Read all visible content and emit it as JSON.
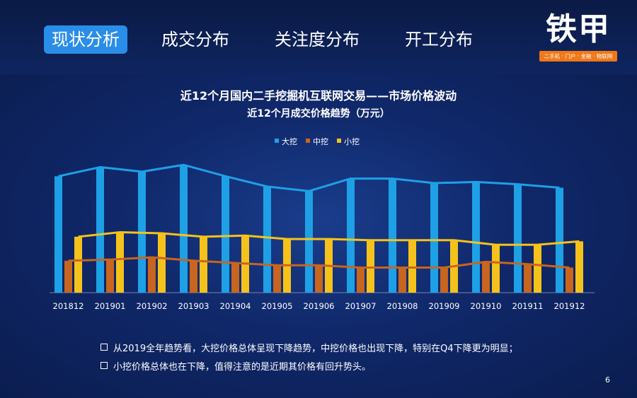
{
  "nav": {
    "tabs": [
      {
        "label": "现状分析",
        "active": true
      },
      {
        "label": "成交分布",
        "active": false
      },
      {
        "label": "关注度分布",
        "active": false
      },
      {
        "label": "开工分布",
        "active": false
      }
    ]
  },
  "logo": {
    "main": "铁甲",
    "sub": "二手机 · 门户 · 金融 · 物联网"
  },
  "colors": {
    "background": "#0d2258",
    "active_tab": "#2a8ee8",
    "large": "#1ea0e6",
    "medium": "#c8651e",
    "small": "#f5c21b",
    "logo_sub": "#f07818"
  },
  "chart_data": {
    "type": "bar",
    "title": "近12个月国内二手挖掘机互联网交易——市场价格波动",
    "subtitle": "近12个月成交价格趋势（万元）",
    "categories": [
      "201812",
      "201901",
      "201902",
      "201903",
      "201904",
      "201905",
      "201906",
      "201907",
      "201908",
      "201909",
      "201910",
      "201911",
      "201912"
    ],
    "series": [
      {
        "name": "大挖",
        "color": "#1ea0e6",
        "values": [
          102,
          110,
          106,
          112,
          102,
          93,
          89,
          100,
          100,
          96,
          97,
          95,
          92
        ]
      },
      {
        "name": "中挖",
        "color": "#c8651e",
        "values": [
          28,
          29,
          31,
          28,
          26,
          24,
          24,
          22,
          22,
          22,
          27,
          25,
          22
        ]
      },
      {
        "name": "小挖",
        "color": "#f5c21b",
        "values": [
          49,
          53,
          52,
          49,
          50,
          47,
          47,
          46,
          46,
          46,
          42,
          42,
          45
        ]
      }
    ],
    "ylim": [
      0,
      140
    ],
    "legend": "top-left",
    "grid": false,
    "trend_lines": true
  },
  "notes": [
    "从2019全年趋势看，大挖价格总体呈现下降趋势，中挖价格也出现下降，特别在Q4下降更为明显；",
    "小挖价格总体也在下降，值得注意的是近期其价格有回升势头。"
  ],
  "page_number": "6"
}
